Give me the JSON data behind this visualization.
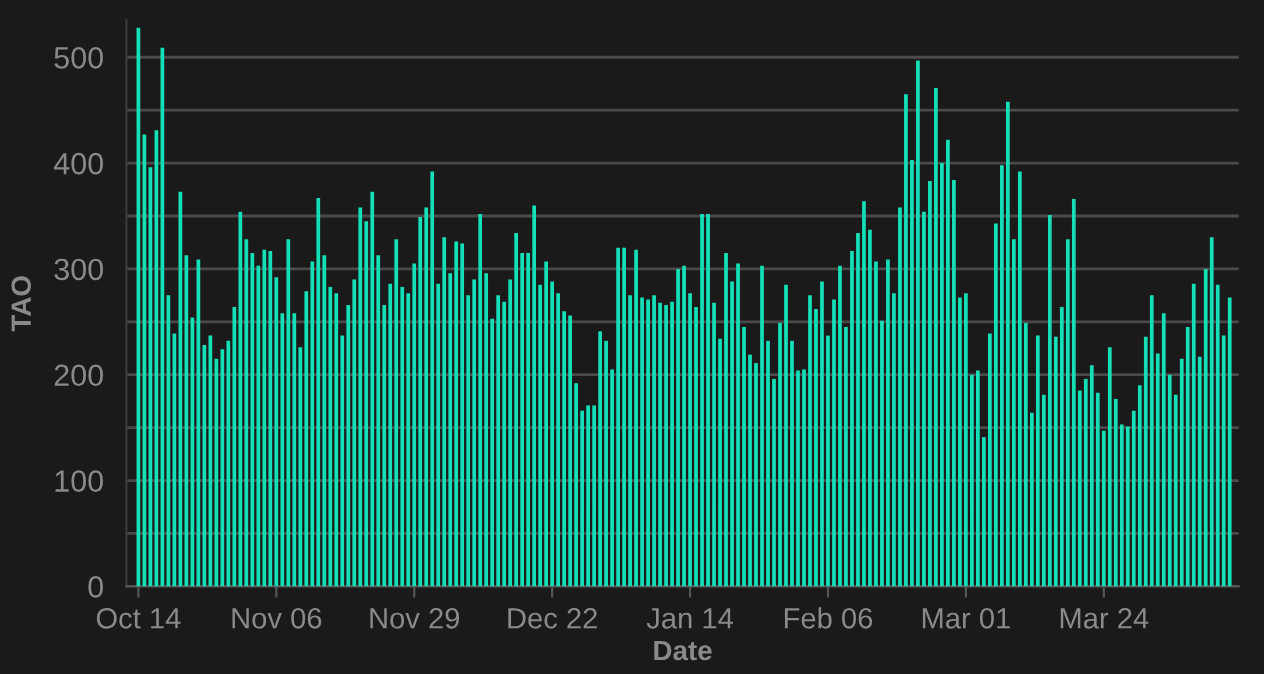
{
  "chart_data": {
    "type": "bar",
    "xlabel": "Date",
    "ylabel": "TAO",
    "color": "#14e0b8",
    "grid": "y",
    "legend": false,
    "categories": [
      "Oct 14",
      null,
      null,
      null,
      null,
      null,
      null,
      null,
      null,
      null,
      null,
      null,
      null,
      null,
      null,
      null,
      null,
      null,
      null,
      null,
      null,
      null,
      null,
      "Nov 06",
      null,
      null,
      null,
      null,
      null,
      null,
      null,
      null,
      null,
      null,
      null,
      null,
      null,
      null,
      null,
      null,
      null,
      null,
      null,
      null,
      null,
      null,
      "Nov 29",
      null,
      null,
      null,
      null,
      null,
      null,
      null,
      null,
      null,
      null,
      null,
      null,
      null,
      null,
      null,
      null,
      null,
      null,
      null,
      null,
      null,
      null,
      "Dec 22",
      null,
      null,
      null,
      null,
      null,
      null,
      null,
      null,
      null,
      null,
      null,
      null,
      null,
      null,
      null,
      null,
      null,
      null,
      null,
      null,
      null,
      null,
      "Jan 14",
      null,
      null,
      null,
      null,
      null,
      null,
      null,
      null,
      null,
      null,
      null,
      null,
      null,
      null,
      null,
      null,
      null,
      null,
      null,
      null,
      null,
      null,
      "Feb 06",
      null,
      null,
      null,
      null,
      null,
      null,
      null,
      null,
      null,
      null,
      null,
      null,
      null,
      null,
      null,
      null,
      null,
      null,
      null,
      null,
      null,
      null,
      "Mar 01",
      null,
      null,
      null,
      null,
      null,
      null,
      null,
      null,
      null,
      null,
      null,
      null,
      null,
      null,
      null,
      null,
      null,
      null,
      null,
      null,
      null,
      null,
      "Mar 24",
      null,
      null,
      null,
      null,
      null,
      null,
      null,
      null,
      null,
      null,
      null,
      null,
      null,
      null,
      null,
      null,
      null,
      null,
      null,
      null,
      null
    ],
    "values": [
      528,
      427,
      396,
      431,
      509,
      275,
      239,
      373,
      313,
      254,
      309,
      228,
      237,
      215,
      224,
      232,
      264,
      354,
      328,
      315,
      303,
      318,
      317,
      292,
      258,
      328,
      258,
      226,
      279,
      307,
      367,
      313,
      283,
      277,
      237,
      266,
      290,
      358,
      345,
      373,
      313,
      266,
      286,
      328,
      283,
      277,
      305,
      349,
      358,
      392,
      286,
      330,
      296,
      326,
      324,
      275,
      290,
      352,
      296,
      253,
      275,
      269,
      290,
      334,
      315,
      315,
      360,
      285,
      307,
      288,
      277,
      260,
      256,
      192,
      166,
      171,
      171,
      241,
      232,
      205,
      320,
      320,
      275,
      318,
      273,
      271,
      275,
      268,
      266,
      269,
      300,
      303,
      277,
      264,
      352,
      352,
      268,
      234,
      315,
      288,
      305,
      245,
      219,
      211,
      303,
      232,
      196,
      249,
      285,
      232,
      204,
      205,
      275,
      262,
      288,
      237,
      271,
      303,
      245,
      317,
      334,
      364,
      337,
      307,
      251,
      309,
      277,
      358,
      465,
      403,
      497,
      354,
      383,
      471,
      400,
      422,
      384,
      273,
      277,
      200,
      204,
      141,
      239,
      343,
      398,
      458,
      328,
      392,
      249,
      164,
      237,
      181,
      351,
      236,
      264,
      328,
      366,
      185,
      196,
      209,
      183,
      147,
      226,
      177,
      153,
      151,
      166,
      190,
      236,
      275,
      220,
      258,
      200,
      181,
      215,
      245,
      286,
      217,
      300,
      330,
      285,
      237,
      273
    ],
    "ylim": [
      0,
      535
    ],
    "yticks": [
      0,
      {
        "value": 50,
        "label": null
      },
      100,
      {
        "value": 150,
        "label": null
      },
      200,
      {
        "value": 250,
        "label": null
      },
      300,
      {
        "value": 350,
        "label": null
      },
      400,
      {
        "value": 450,
        "label": null
      },
      500
    ]
  }
}
